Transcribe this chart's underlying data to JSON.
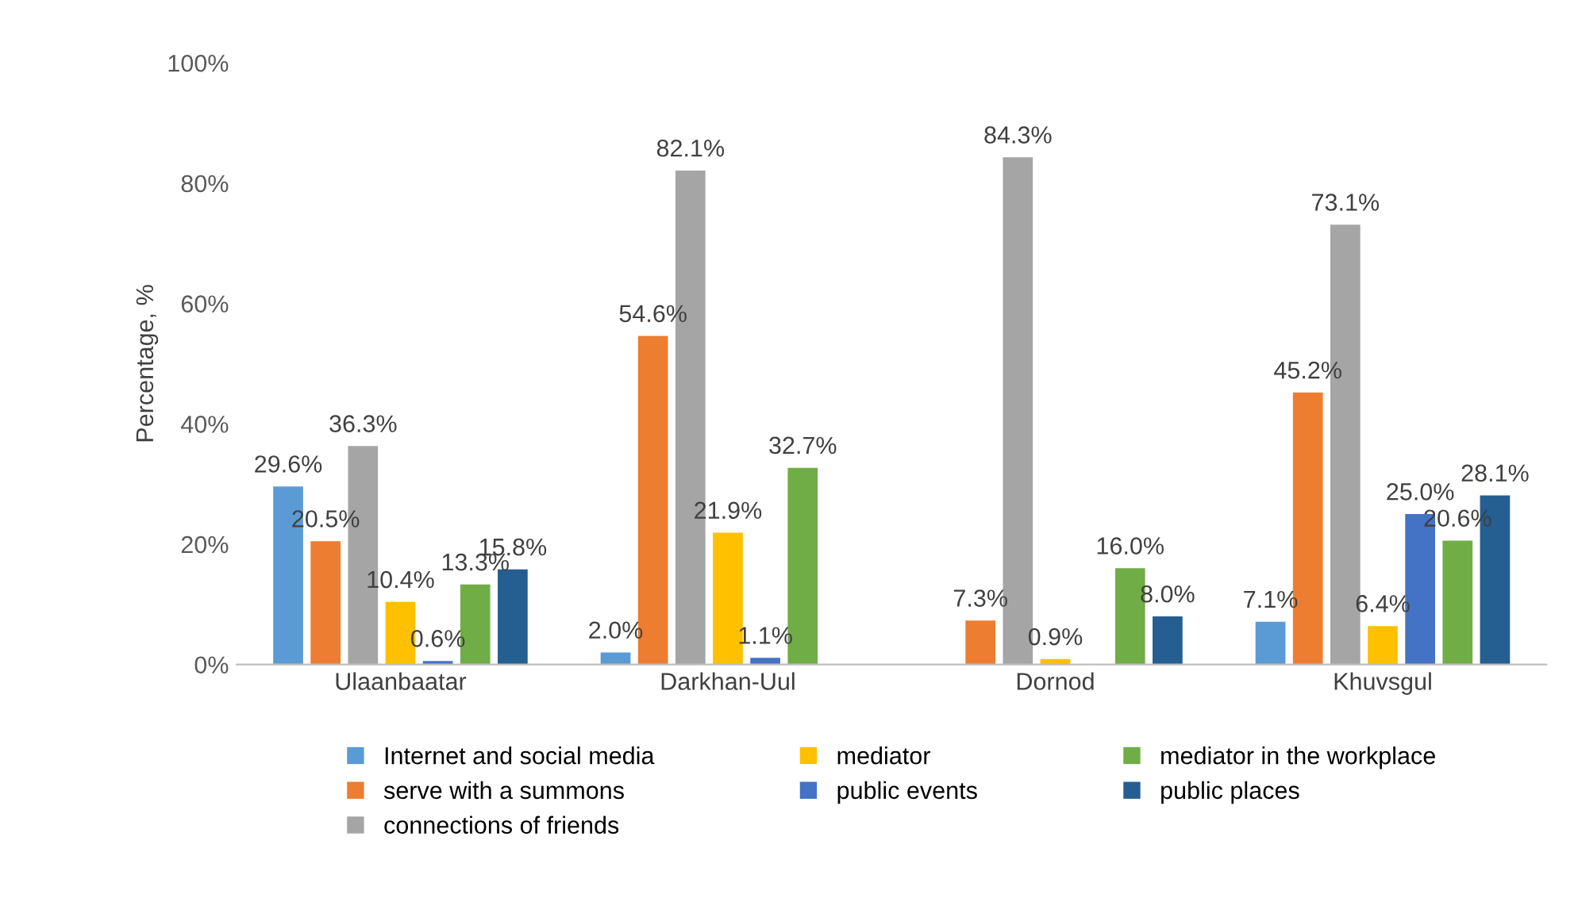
{
  "chart_data": {
    "type": "bar",
    "ylabel": "Percentage, %",
    "categories": [
      "Ulaanbaatar",
      "Darkhan-Uul",
      "Dornod",
      "Khuvsgul"
    ],
    "series": [
      {
        "name": "Internet and social media",
        "color": "#5b9bd5",
        "values": [
          29.6,
          2.0,
          null,
          7.1
        ],
        "value_labels": [
          "29.6%",
          "2.0%",
          null,
          "7.1%"
        ]
      },
      {
        "name": "serve with a summons",
        "color": "#ed7d31",
        "values": [
          20.5,
          54.6,
          7.3,
          45.2
        ],
        "value_labels": [
          "20.5%",
          "54.6%",
          "7.3%",
          "45.2%"
        ]
      },
      {
        "name": "connections of friends",
        "color": "#a5a5a5",
        "values": [
          36.3,
          82.1,
          84.3,
          73.1
        ],
        "value_labels": [
          "36.3%",
          "82.1%",
          "84.3%",
          "73.1%"
        ]
      },
      {
        "name": "mediator",
        "color": "#ffc000",
        "values": [
          10.4,
          21.9,
          0.9,
          6.4
        ],
        "value_labels": [
          "10.4%",
          "21.9%",
          "0.9%",
          "6.4%"
        ]
      },
      {
        "name": "public events",
        "color": "#4472c4",
        "values": [
          0.6,
          1.1,
          null,
          25.0
        ],
        "value_labels": [
          "0.6%",
          "1.1%",
          null,
          "25.0%"
        ]
      },
      {
        "name": "mediator in the workplace",
        "color": "#70ad47",
        "values": [
          13.3,
          32.7,
          16.0,
          20.6
        ],
        "value_labels": [
          "13.3%",
          "32.7%",
          "16.0%",
          "20.6%"
        ]
      },
      {
        "name": "public places",
        "color": "#255e91",
        "values": [
          15.8,
          null,
          8.0,
          28.1
        ],
        "value_labels": [
          "15.8%",
          null,
          "8.0%",
          "28.1%"
        ]
      }
    ],
    "ylim": [
      0,
      100
    ],
    "yticks": [
      {
        "value": 0,
        "label": "0%"
      },
      {
        "value": 20,
        "label": "20%"
      },
      {
        "value": 40,
        "label": "40%"
      },
      {
        "value": 60,
        "label": "60%"
      },
      {
        "value": 80,
        "label": "80%"
      },
      {
        "value": 100,
        "label": "100%"
      }
    ],
    "grid": false,
    "legend": "bottom"
  }
}
